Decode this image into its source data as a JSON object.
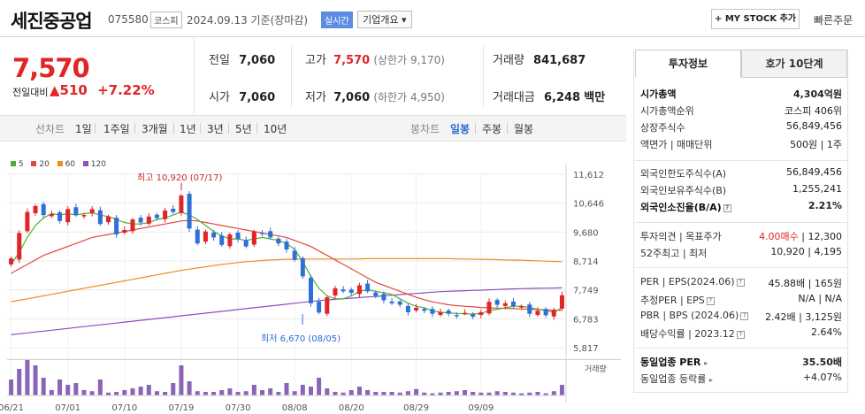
{
  "header": {
    "stock_name": "세진중공업",
    "stock_code": "075580",
    "market": "코스피",
    "date": "2024.09.13 기준(장마감)",
    "realtime_badge": "실시간",
    "overview_dropdown": "기업개요 ▾",
    "mystock_button": "+ MY STOCK 추가",
    "quick_order": "빠른주문"
  },
  "price": {
    "current": "7,570",
    "change_label": "전일대비",
    "change": "▲510",
    "change_pct": "+7.22%"
  },
  "quotes": {
    "prev_close_label": "전일",
    "prev_close": "7,060",
    "high_label": "고가",
    "high": "7,570",
    "upper_limit": "(상한가 9,170)",
    "volume_label": "거래량",
    "volume": "841,687",
    "open_label": "시가",
    "open": "7,060",
    "low_label": "저가",
    "low": "7,060",
    "lower_limit": "(하한가 4,950)",
    "amount_label": "거래대금",
    "amount": "6,248",
    "amount_unit": "백만"
  },
  "toolbar": {
    "line_chart": "선차트",
    "periods": [
      "1일",
      "1주일",
      "3개월",
      "1년",
      "3년",
      "5년",
      "10년"
    ],
    "candle_chart": "봉차트",
    "candle_periods": [
      "일봉",
      "주봉",
      "월봉"
    ]
  },
  "legend": [
    "5",
    "20",
    "60",
    "120"
  ],
  "colors": {
    "up": "#e12427",
    "down": "#2f6fd6",
    "ma5": "#4caf32",
    "ma20": "#e04a3a",
    "ma60": "#f08c1e",
    "ma120": "#8a4fc0",
    "volume": "#8b63b8"
  },
  "chart_data": {
    "type": "candlestick",
    "y_ticks": [
      "11,612",
      "10,646",
      "9,680",
      "8,714",
      "7,749",
      "6,783",
      "5,817"
    ],
    "ylim": [
      5817,
      11612
    ],
    "x_ticks": [
      "06/21",
      "07/01",
      "07/10",
      "07/19",
      "07/30",
      "08/08",
      "08/20",
      "08/29",
      "09/09"
    ],
    "annotation_high": "최고 10,920 (07/17)",
    "annotation_low": "최저 6,670 (08/05)",
    "volume_label": "거래량",
    "closes": [
      8800,
      9650,
      10350,
      10550,
      10250,
      10280,
      10050,
      10450,
      10250,
      10250,
      10450,
      9950,
      10200,
      9600,
      9750,
      10100,
      10000,
      10200,
      10150,
      10400,
      10350,
      10900,
      9800,
      9300,
      9700,
      9500,
      9250,
      9600,
      9450,
      9200,
      9700,
      9650,
      9500,
      9300,
      9100,
      8750,
      8200,
      7300,
      6990,
      7500,
      7800,
      7700,
      7650,
      7900,
      7700,
      7550,
      7400,
      7300,
      7250,
      7000,
      7150,
      7050,
      6950,
      7000,
      6950,
      6900,
      6980,
      6850,
      7000,
      7350,
      7250,
      7300,
      7200,
      7200,
      6950,
      7050,
      6900,
      7060,
      7570
    ],
    "volume_rel": [
      0.45,
      0.75,
      1.0,
      0.85,
      0.5,
      0.15,
      0.45,
      0.3,
      0.35,
      0.15,
      0.12,
      0.45,
      0.08,
      0.1,
      0.15,
      0.2,
      0.25,
      0.3,
      0.12,
      0.1,
      0.35,
      0.85,
      0.4,
      0.12,
      0.1,
      0.1,
      0.15,
      0.2,
      0.1,
      0.12,
      0.3,
      0.15,
      0.2,
      0.1,
      0.35,
      0.12,
      0.3,
      0.25,
      0.5,
      0.2,
      0.1,
      0.08,
      0.15,
      0.25,
      0.15,
      0.1,
      0.1,
      0.1,
      0.08,
      0.12,
      0.18,
      0.08,
      0.06,
      0.08,
      0.1,
      0.12,
      0.15,
      0.1,
      0.08,
      0.08,
      0.12,
      0.1,
      0.08,
      0.06,
      0.08,
      0.1,
      0.06,
      0.12,
      0.3
    ],
    "ma5": [
      8600,
      9000,
      9500,
      9900,
      10150,
      10300,
      10250,
      10300,
      10250,
      10300,
      10320,
      10250,
      10200,
      10100,
      10000,
      9950,
      9950,
      10000,
      10100,
      10150,
      10250,
      10350,
      10250,
      10100,
      9900,
      9700,
      9550,
      9450,
      9450,
      9400,
      9450,
      9500,
      9450,
      9400,
      9300,
      9100,
      8700,
      8200,
      7800,
      7550,
      7450,
      7450,
      7550,
      7700,
      7750,
      7700,
      7650,
      7600,
      7450,
      7300,
      7200,
      7150,
      7050,
      7000,
      6980,
      6960,
      6950,
      6940,
      6960,
      7050,
      7100,
      7150,
      7200,
      7200,
      7150,
      7100,
      7050,
      7000,
      7150
    ],
    "ma20": [
      8300,
      8450,
      8600,
      8750,
      8900,
      9000,
      9100,
      9200,
      9300,
      9400,
      9500,
      9550,
      9600,
      9650,
      9700,
      9750,
      9800,
      9850,
      9900,
      9950,
      10000,
      10050,
      10070,
      10050,
      10000,
      9950,
      9900,
      9850,
      9800,
      9750,
      9700,
      9650,
      9600,
      9550,
      9500,
      9400,
      9300,
      9200,
      9050,
      8900,
      8750,
      8600,
      8450,
      8300,
      8150,
      8000,
      7900,
      7800,
      7700,
      7600,
      7500,
      7420,
      7350,
      7300,
      7250,
      7220,
      7200,
      7180,
      7160,
      7150,
      7140,
      7130,
      7120,
      7110,
      7100,
      7090,
      7080,
      7070,
      7065
    ],
    "ma60": [
      7350,
      7400,
      7450,
      7500,
      7550,
      7600,
      7650,
      7700,
      7750,
      7800,
      7850,
      7900,
      7950,
      8000,
      8050,
      8100,
      8150,
      8200,
      8250,
      8300,
      8350,
      8400,
      8440,
      8480,
      8520,
      8560,
      8600,
      8630,
      8660,
      8690,
      8710,
      8730,
      8750,
      8760,
      8770,
      8775,
      8780,
      8780,
      8780,
      8780,
      8780,
      8780,
      8780,
      8785,
      8790,
      8790,
      8790,
      8790,
      8790,
      8790,
      8790,
      8790,
      8790,
      8790,
      8790,
      8785,
      8780,
      8775,
      8770,
      8765,
      8760,
      8750,
      8745,
      8740,
      8730,
      8720,
      8710,
      8700,
      8690
    ],
    "ma120": [
      6250,
      6280,
      6310,
      6340,
      6370,
      6400,
      6430,
      6460,
      6490,
      6520,
      6550,
      6580,
      6610,
      6640,
      6670,
      6700,
      6730,
      6760,
      6790,
      6820,
      6850,
      6880,
      6910,
      6940,
      6970,
      7000,
      7030,
      7060,
      7090,
      7120,
      7150,
      7180,
      7210,
      7240,
      7270,
      7300,
      7330,
      7360,
      7390,
      7410,
      7430,
      7450,
      7470,
      7490,
      7510,
      7530,
      7550,
      7570,
      7590,
      7610,
      7630,
      7650,
      7670,
      7690,
      7700,
      7710,
      7720,
      7730,
      7740,
      7750,
      7760,
      7770,
      7780,
      7790,
      7795,
      7800,
      7805,
      7810,
      7815
    ]
  },
  "side": {
    "tab_invest": "투자정보",
    "tab_order": "호가 10단계",
    "rows1": [
      {
        "k": "시가총액",
        "v": "4,304억원"
      },
      {
        "k": "시가총액순위",
        "v": "코스피 406위"
      },
      {
        "k": "상장주식수",
        "v": "56,849,456"
      },
      {
        "k": "액면가 | 매매단위",
        "v": "500원 | 1주"
      }
    ],
    "rows2": [
      {
        "k": "외국인한도주식수(A)",
        "v": "56,849,456"
      },
      {
        "k": "외국인보유주식수(B)",
        "v": "1,255,241"
      },
      {
        "k": "외국인소진율(B/A)",
        "v": "2.21%"
      }
    ],
    "rows3": [
      {
        "k": "투자의견 | 목표주가",
        "v1": "4.00매수",
        "v2": " | 12,300"
      },
      {
        "k": "52주최고 | 최저",
        "v": "10,920 | 4,195"
      }
    ],
    "rows4": [
      {
        "k": "PER | EPS(2024.06)",
        "v": "45.88배 | 165원"
      },
      {
        "k": "추정PER | EPS",
        "v": "N/A | N/A"
      },
      {
        "k": "PBR | BPS (2024.06)",
        "v": "2.42배 | 3,125원"
      },
      {
        "k": "배당수익률 | 2023.12",
        "v": "2.64%"
      }
    ],
    "rows5": [
      {
        "k": "동일업종 PER",
        "v": "35.50배"
      },
      {
        "k": "동일업종 등락률",
        "v": "+4.07%"
      }
    ]
  }
}
